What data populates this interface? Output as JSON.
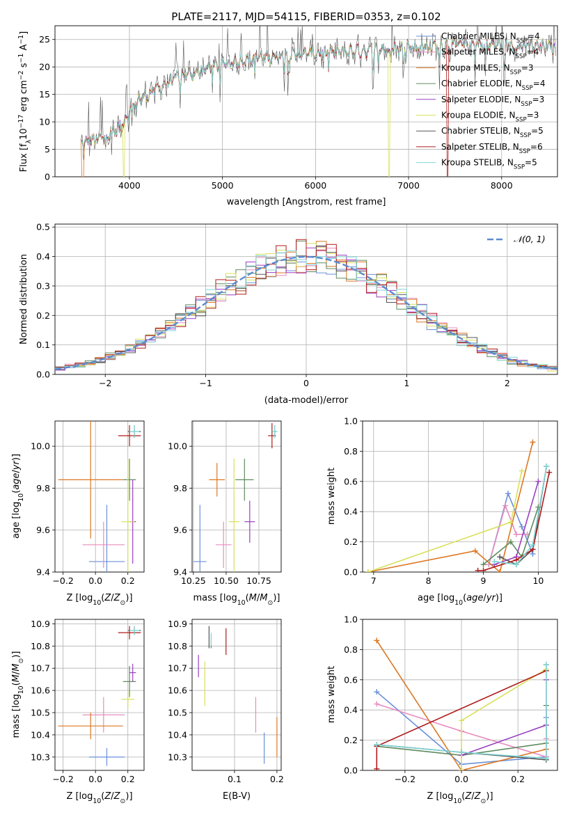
{
  "title": "PLATE=2117, MJD=54115, FIBERID=0353, z=0.102",
  "series": [
    {
      "name": "Chabrier MILES, N$_{SSP}$=4",
      "label_main": "Chabrier MILES, N",
      "label_sub": "SSP",
      "label_end": "=4",
      "color": "#6a8fd8"
    },
    {
      "name": "Salpeter MILES, N$_{SSP}$=4",
      "label_main": "Salpeter MILES, N",
      "label_sub": "SSP",
      "label_end": "=4",
      "color": "#e88bbf"
    },
    {
      "name": "Kroupa MILES, N$_{SSP}$=3",
      "label_main": "Kroupa MILES, N",
      "label_sub": "SSP",
      "label_end": "=3",
      "color": "#dd7722"
    },
    {
      "name": "Chabrier ELODIE, N$_{SSP}$=4",
      "label_main": "Chabrier ELODIE, N",
      "label_sub": "SSP",
      "label_end": "=4",
      "color": "#5f8a5f"
    },
    {
      "name": "Salpeter ELODIE, N$_{SSP}$=3",
      "label_main": "Salpeter ELODIE, N",
      "label_sub": "SSP",
      "label_end": "=3",
      "color": "#9a3fc0"
    },
    {
      "name": "Kroupa ELODIE, N$_{SSP}$=3",
      "label_main": "Kroupa ELODIE, N",
      "label_sub": "SSP",
      "label_end": "=3",
      "color": "#d8e05a"
    },
    {
      "name": "Chabrier STELIB, N$_{SSP}$=5",
      "label_main": "Chabrier STELIB, N",
      "label_sub": "SSP",
      "label_end": "=5",
      "color": "#555555"
    },
    {
      "name": "Salpeter STELIB, N$_{SSP}$=6",
      "label_main": "Salpeter STELIB, N",
      "label_sub": "SSP",
      "label_end": "=6",
      "color": "#b01a1a"
    },
    {
      "name": "Kroupa STELIB, N$_{SSP}$=5",
      "label_main": "Kroupa STELIB, N",
      "label_sub": "SSP",
      "label_end": "=5",
      "color": "#7fd6d6"
    }
  ],
  "chart_data": [
    {
      "id": "spectrum",
      "type": "line",
      "xlabel": "wavelength [Angstrom, rest frame]",
      "ylabel_main": "Flux [f",
      "ylabel_sub": "λ",
      "ylabel_mid": "10",
      "ylabel_sup1": "−17",
      "ylabel_mid2": " erg cm",
      "ylabel_sup2": "−2",
      "ylabel_mid3": " s",
      "ylabel_sup3": "−1",
      "ylabel_mid4": " A",
      "ylabel_sup4": "−1",
      "ylabel_end": "]",
      "xlim": [
        3200,
        8600
      ],
      "ylim": [
        0,
        27.5
      ],
      "xticks": [
        4000,
        5000,
        6000,
        7000,
        8000
      ],
      "yticks": [
        0,
        5,
        10,
        15,
        20,
        25
      ],
      "legend": "upper right",
      "x_range": [
        3480,
        8580
      ],
      "continuum_points": [
        [
          3480,
          6
        ],
        [
          3700,
          7
        ],
        [
          3900,
          9
        ],
        [
          4000,
          12
        ],
        [
          4100,
          14
        ],
        [
          4300,
          16
        ],
        [
          4500,
          18
        ],
        [
          4800,
          19.5
        ],
        [
          5000,
          20.5
        ],
        [
          5300,
          21.5
        ],
        [
          5600,
          22
        ],
        [
          6000,
          22.5
        ],
        [
          6500,
          23
        ],
        [
          7000,
          23.5
        ],
        [
          7500,
          24
        ],
        [
          8000,
          24
        ],
        [
          8580,
          23.5
        ]
      ],
      "dips": [
        {
          "series": 2,
          "x": 3500,
          "min": 0
        },
        {
          "series": 5,
          "x": 3940,
          "min": 0
        },
        {
          "series": 5,
          "x": 6790,
          "min": 0
        },
        {
          "series": 7,
          "x": 7420,
          "min": 0
        }
      ]
    },
    {
      "id": "residuals",
      "type": "histogram",
      "xlabel": "(data-model)/error",
      "ylabel": "Normed distribution",
      "xlim": [
        -2.5,
        2.5
      ],
      "ylim": [
        0,
        0.51
      ],
      "xticks": [
        -2,
        -1,
        0,
        1,
        2
      ],
      "xtick_labels": [
        "−2",
        "−1",
        "0",
        "1",
        "2"
      ],
      "yticks": [
        0.0,
        0.1,
        0.2,
        0.3,
        0.4,
        0.5
      ],
      "ytick_labels": [
        "0.0",
        "0.1",
        "0.2",
        "0.3",
        "0.4",
        "0.5"
      ],
      "bin_width": 0.1,
      "bin_start": -2.5,
      "normal_label": "𝒩(0, 1)",
      "normal_color": "#5b8bd0",
      "grid": true
    },
    {
      "id": "age_vs_Z",
      "type": "scatter",
      "xlabel": "Z [log$_{10}$(Z/Z$_\\odot$)]",
      "ylabel": "age  [log$_{10}$(age/yr)]",
      "xlim": [
        -0.25,
        0.3
      ],
      "ylim": [
        9.4,
        10.12
      ],
      "xticks": [
        -0.2,
        0.0,
        0.2
      ],
      "xtick_labels": [
        "−0.2",
        "0.0",
        "0.2"
      ],
      "yticks": [
        9.4,
        9.6,
        9.8,
        10.0
      ],
      "ytick_labels": [
        "9.4",
        "9.6",
        "9.8",
        "10.0"
      ],
      "points": [
        {
          "series": 0,
          "x": 0.07,
          "xerr": 0.11,
          "y": 9.45,
          "yerr": 0.27
        },
        {
          "series": 1,
          "x": 0.05,
          "xerr": 0.13,
          "y": 9.53,
          "yerr": 0.11
        },
        {
          "series": 2,
          "x": -0.03,
          "xerr": 0.2,
          "y": 9.84,
          "yerr": 0.28
        },
        {
          "series": 3,
          "x": 0.21,
          "xerr": 0.04,
          "y": 9.84,
          "yerr": 0.1
        },
        {
          "series": 4,
          "x": 0.23,
          "xerr": 0.02,
          "y": 9.64,
          "yerr": 0.2
        },
        {
          "series": 5,
          "x": 0.2,
          "xerr": 0.04,
          "y": 9.64,
          "yerr": 0.3
        },
        {
          "series": 6,
          "x": 0.24,
          "xerr": 0.04,
          "y": 10.07,
          "yerr": 0.03
        },
        {
          "series": 7,
          "x": 0.21,
          "xerr": 0.07,
          "y": 10.05,
          "yerr": 0.05
        },
        {
          "series": 8,
          "x": 0.24,
          "xerr": 0.03,
          "y": 10.07,
          "yerr": 0.03
        }
      ]
    },
    {
      "id": "age_vs_mass",
      "type": "scatter",
      "xlabel": "mass [log$_{10}$(M/M$_\\odot$)]",
      "ylabel": "",
      "xlim": [
        10.24,
        10.92
      ],
      "ylim": [
        9.4,
        10.12
      ],
      "xticks": [
        10.25,
        10.5,
        10.75
      ],
      "xtick_labels": [
        "10.25",
        "10.50",
        "10.75"
      ],
      "yticks": [
        9.4,
        9.6,
        9.8,
        10.0
      ],
      "ytick_labels": [
        "9.4",
        "9.6",
        "9.8",
        "10.0"
      ],
      "points": [
        {
          "series": 0,
          "x": 10.3,
          "xerr": 0.05,
          "y": 9.45,
          "yerr": 0.27
        },
        {
          "series": 1,
          "x": 10.48,
          "xerr": 0.06,
          "y": 9.53,
          "yerr": 0.11
        },
        {
          "series": 2,
          "x": 10.43,
          "xerr": 0.06,
          "y": 9.84,
          "yerr": 0.08
        },
        {
          "series": 3,
          "x": 10.64,
          "xerr": 0.07,
          "y": 9.84,
          "yerr": 0.1
        },
        {
          "series": 4,
          "x": 10.68,
          "xerr": 0.04,
          "y": 9.64,
          "yerr": 0.1
        },
        {
          "series": 5,
          "x": 10.56,
          "xerr": 0.04,
          "y": 9.64,
          "yerr": 0.3
        },
        {
          "series": 6,
          "x": 10.87,
          "xerr": 0.02,
          "y": 10.07,
          "yerr": 0.03
        },
        {
          "series": 7,
          "x": 10.85,
          "xerr": 0.03,
          "y": 10.05,
          "yerr": 0.06
        },
        {
          "series": 8,
          "x": 10.87,
          "xerr": 0.02,
          "y": 10.07,
          "yerr": 0.03
        }
      ]
    },
    {
      "id": "weight_vs_age",
      "type": "line",
      "xlabel": "age  [log$_{10}$(age/yr)]",
      "ylabel": "mass weight",
      "xlim": [
        6.8,
        10.35
      ],
      "ylim": [
        0,
        1.0
      ],
      "xticks": [
        7,
        8,
        9,
        10
      ],
      "xtick_labels": [
        "7",
        "8",
        "9",
        "10"
      ],
      "yticks": [
        0.0,
        0.2,
        0.4,
        0.6,
        0.8,
        1.0
      ],
      "ytick_labels": [
        "0.0",
        "0.2",
        "0.4",
        "0.6",
        "0.8",
        "1.0"
      ],
      "grid": true,
      "series_points": [
        {
          "series": 0,
          "x": [
            9.1,
            9.45,
            9.7,
            9.9
          ],
          "y": [
            0.05,
            0.52,
            0.3,
            0.12
          ]
        },
        {
          "series": 1,
          "x": [
            9.1,
            9.4,
            9.6,
            9.8
          ],
          "y": [
            0.05,
            0.44,
            0.25,
            0.25
          ]
        },
        {
          "series": 2,
          "x": [
            6.9,
            8.85,
            9.3,
            9.9
          ],
          "y": [
            0.0,
            0.14,
            0.0,
            0.86
          ]
        },
        {
          "series": 3,
          "x": [
            9.0,
            9.5,
            9.7,
            10.0
          ],
          "y": [
            0.05,
            0.2,
            0.1,
            0.43
          ]
        },
        {
          "series": 4,
          "x": [
            9.2,
            9.6,
            10.0
          ],
          "y": [
            0.05,
            0.1,
            0.6
          ]
        },
        {
          "series": 5,
          "x": [
            6.9,
            9.5,
            9.7
          ],
          "y": [
            0.0,
            0.33,
            0.67
          ]
        },
        {
          "series": 6,
          "x": [
            9.3,
            9.6,
            9.9,
            10.15
          ],
          "y": [
            0.1,
            0.05,
            0.15,
            0.7
          ]
        },
        {
          "series": 7,
          "x": [
            8.9,
            9.0,
            9.6,
            9.9,
            10.2
          ],
          "y": [
            0.01,
            0.01,
            0.08,
            0.15,
            0.66
          ]
        },
        {
          "series": 8,
          "x": [
            9.2,
            9.6,
            9.9,
            10.15
          ],
          "y": [
            0.07,
            0.05,
            0.18,
            0.7
          ]
        }
      ]
    },
    {
      "id": "mass_vs_Z",
      "type": "scatter",
      "xlabel": "Z [log$_{10}$(Z/Z$_\\odot$)]",
      "ylabel": "mass [log$_{10}$(M/M$_\\odot$)]",
      "xlim": [
        -0.25,
        0.3
      ],
      "ylim": [
        10.24,
        10.92
      ],
      "xticks": [
        -0.2,
        0.0,
        0.2
      ],
      "xtick_labels": [
        "−0.2",
        "0.0",
        "0.2"
      ],
      "yticks": [
        10.3,
        10.4,
        10.5,
        10.6,
        10.7,
        10.8,
        10.9
      ],
      "ytick_labels": [
        "10.3",
        "10.4",
        "10.5",
        "10.6",
        "10.7",
        "10.8",
        "10.9"
      ],
      "points": [
        {
          "series": 0,
          "x": 0.07,
          "xerr": 0.11,
          "y": 10.3,
          "yerr": 0.04
        },
        {
          "series": 1,
          "x": 0.05,
          "xerr": 0.13,
          "y": 10.49,
          "yerr": 0.08
        },
        {
          "series": 2,
          "x": -0.03,
          "xerr": 0.2,
          "y": 10.44,
          "yerr": 0.06
        },
        {
          "series": 3,
          "x": 0.21,
          "xerr": 0.04,
          "y": 10.64,
          "yerr": 0.07
        },
        {
          "series": 4,
          "x": 0.23,
          "xerr": 0.02,
          "y": 10.68,
          "yerr": 0.04
        },
        {
          "series": 5,
          "x": 0.2,
          "xerr": 0.04,
          "y": 10.56,
          "yerr": 0.04
        },
        {
          "series": 6,
          "x": 0.24,
          "xerr": 0.04,
          "y": 10.87,
          "yerr": 0.02
        },
        {
          "series": 7,
          "x": 0.21,
          "xerr": 0.07,
          "y": 10.86,
          "yerr": 0.03
        },
        {
          "series": 8,
          "x": 0.24,
          "xerr": 0.03,
          "y": 10.87,
          "yerr": 0.02
        }
      ]
    },
    {
      "id": "mass_vs_ebv",
      "type": "scatter",
      "xlabel": "E(B-V)",
      "ylabel": "",
      "xlim": [
        0.0,
        0.21
      ],
      "ylim": [
        10.24,
        10.92
      ],
      "xticks": [
        0.1,
        0.2
      ],
      "xtick_labels": [
        "0.1",
        "0.2"
      ],
      "yticks": [
        10.3,
        10.4,
        10.5,
        10.6,
        10.7,
        10.8,
        10.9
      ],
      "ytick_labels": [
        "10.3",
        "10.4",
        "10.5",
        "10.6",
        "10.7",
        "10.8",
        "10.9"
      ],
      "points": [
        {
          "series": 0,
          "x": 0.17,
          "xerr": 0.0,
          "y": 10.34,
          "yerr": 0.07
        },
        {
          "series": 1,
          "x": 0.15,
          "xerr": 0.0,
          "y": 10.49,
          "yerr": 0.08
        },
        {
          "series": 2,
          "x": 0.2,
          "xerr": 0.0,
          "y": 10.39,
          "yerr": 0.09
        },
        {
          "series": 3,
          "x": 0.045,
          "xerr": 0.0,
          "y": 10.82,
          "yerr": 0.03
        },
        {
          "series": 4,
          "x": 0.015,
          "xerr": 0.0,
          "y": 10.71,
          "yerr": 0.05
        },
        {
          "series": 5,
          "x": 0.03,
          "xerr": 0.0,
          "y": 10.63,
          "yerr": 0.1
        },
        {
          "series": 6,
          "x": 0.04,
          "xerr": 0.0,
          "y": 10.84,
          "yerr": 0.05
        },
        {
          "series": 7,
          "x": 0.08,
          "xerr": 0.0,
          "y": 10.82,
          "yerr": 0.06
        },
        {
          "series": 8,
          "x": 0.045,
          "xerr": 0.0,
          "y": 10.83,
          "yerr": 0.03
        }
      ]
    },
    {
      "id": "weight_vs_Z",
      "type": "line",
      "xlabel": "Z [log$_{10}$(Z/Z$_\\odot$)]",
      "ylabel": "mass weight",
      "xlim": [
        -0.35,
        0.34
      ],
      "ylim": [
        0,
        1.0
      ],
      "xticks": [
        -0.2,
        0.0,
        0.2
      ],
      "xtick_labels": [
        "−0.2",
        "0.0",
        "0.2"
      ],
      "yticks": [
        0.0,
        0.2,
        0.4,
        0.6,
        0.8,
        1.0
      ],
      "ytick_labels": [
        "0.0",
        "0.2",
        "0.4",
        "0.6",
        "0.8",
        "1.0"
      ],
      "grid": true,
      "series_points": [
        {
          "series": 0,
          "x": [
            -0.3,
            0.0,
            0.3,
            0.3
          ],
          "y": [
            0.52,
            0.04,
            0.09,
            0.35
          ]
        },
        {
          "series": 1,
          "x": [
            -0.3,
            0.0,
            0.3,
            0.3
          ],
          "y": [
            0.44,
            0.26,
            0.09,
            0.21
          ]
        },
        {
          "series": 2,
          "x": [
            -0.3,
            0.0,
            0.3
          ],
          "y": [
            0.86,
            0.0,
            0.14
          ]
        },
        {
          "series": 3,
          "x": [
            -0.3,
            0.0,
            0.3,
            0.3
          ],
          "y": [
            0.16,
            0.1,
            0.18,
            0.43
          ]
        },
        {
          "series": 4,
          "x": [
            0.0,
            0.3,
            0.3
          ],
          "y": [
            0.1,
            0.3,
            0.6
          ]
        },
        {
          "series": 5,
          "x": [
            0.0,
            0.0,
            0.3
          ],
          "y": [
            0.0,
            0.33,
            0.67
          ]
        },
        {
          "series": 6,
          "x": [
            -0.3,
            0.0,
            0.3,
            0.3
          ],
          "y": [
            0.17,
            0.12,
            0.07,
            0.7
          ]
        },
        {
          "series": 7,
          "x": [
            -0.3,
            -0.3,
            0.3
          ],
          "y": [
            0.01,
            0.16,
            0.66
          ]
        },
        {
          "series": 8,
          "x": [
            -0.3,
            0.0,
            0.3,
            0.3
          ],
          "y": [
            0.17,
            0.12,
            0.08,
            0.7
          ]
        }
      ]
    }
  ]
}
